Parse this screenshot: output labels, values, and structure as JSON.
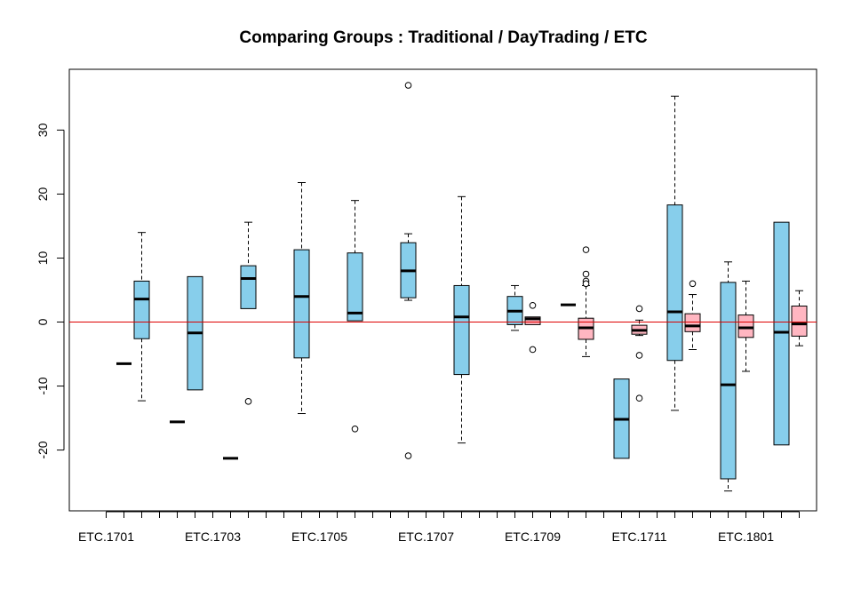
{
  "chart_data": {
    "type": "box",
    "title": "Comparing Groups : Traditional / DayTrading / ETC",
    "xlabel": "",
    "ylabel": "",
    "ylim": [
      -29.5,
      39.5
    ],
    "yticks": [
      -20,
      -10,
      0,
      10,
      20,
      30
    ],
    "reference_line": {
      "y": 0,
      "color": "#dd0000"
    },
    "colors": {
      "blue": "#87ceeb",
      "pink": "#ffb6c1"
    },
    "group_count": 40,
    "x_tick_labels": [
      {
        "group": 1,
        "label": "ETC.1701"
      },
      {
        "group": 7,
        "label": "ETC.1703"
      },
      {
        "group": 13,
        "label": "ETC.1705"
      },
      {
        "group": 19,
        "label": "ETC.1707"
      },
      {
        "group": 25,
        "label": "ETC.1709"
      },
      {
        "group": 31,
        "label": "ETC.1711"
      },
      {
        "group": 37,
        "label": "ETC.1801"
      }
    ],
    "boxes": [
      {
        "group": 2,
        "color": "blue",
        "single": -6.5
      },
      {
        "group": 3,
        "color": "blue",
        "whisker_low": -12.3,
        "q1": -2.6,
        "median": 3.6,
        "q3": 6.4,
        "whisker_high": 14.0,
        "outliers": []
      },
      {
        "group": 5,
        "color": "blue",
        "single": -15.6
      },
      {
        "group": 6,
        "color": "blue",
        "whisker_low": -10.6,
        "q1": -10.6,
        "median": -1.7,
        "q3": 7.1,
        "whisker_high": 7.1,
        "outliers": []
      },
      {
        "group": 8,
        "color": "blue",
        "single": -21.3
      },
      {
        "group": 9,
        "color": "blue",
        "whisker_low": 2.1,
        "q1": 2.1,
        "median": 6.8,
        "q3": 8.8,
        "whisker_high": 15.6,
        "outliers": [
          -12.4
        ]
      },
      {
        "group": 12,
        "color": "blue",
        "whisker_low": -14.3,
        "q1": -5.6,
        "median": 4.0,
        "q3": 11.3,
        "whisker_high": 21.8,
        "outliers": []
      },
      {
        "group": 15,
        "color": "blue",
        "whisker_low": 0.2,
        "q1": 0.2,
        "median": 1.4,
        "q3": 10.8,
        "whisker_high": 19.0,
        "outliers": [
          -16.7
        ]
      },
      {
        "group": 18,
        "color": "blue",
        "whisker_low": 3.4,
        "q1": 3.8,
        "median": 8.0,
        "q3": 12.4,
        "whisker_high": 13.8,
        "outliers": [
          37.0,
          -20.9
        ]
      },
      {
        "group": 21,
        "color": "blue",
        "whisker_low": -18.9,
        "q1": -8.2,
        "median": 0.8,
        "q3": 5.7,
        "whisker_high": 19.6,
        "outliers": []
      },
      {
        "group": 24,
        "color": "blue",
        "whisker_low": -1.3,
        "q1": -0.4,
        "median": 1.7,
        "q3": 4.0,
        "whisker_high": 5.7,
        "outliers": []
      },
      {
        "group": 25,
        "color": "pink",
        "whisker_low": -0.4,
        "q1": -0.4,
        "median": 0.5,
        "q3": 0.8,
        "whisker_high": 0.8,
        "outliers": [
          2.6,
          -4.3
        ]
      },
      {
        "group": 27,
        "color": "blue",
        "single": 2.7
      },
      {
        "group": 28,
        "color": "pink",
        "whisker_low": -5.4,
        "q1": -2.7,
        "median": -0.9,
        "q3": 0.6,
        "whisker_high": 5.7,
        "outliers": [
          11.3,
          7.5,
          6.4,
          6.0
        ]
      },
      {
        "group": 30,
        "color": "blue",
        "whisker_low": -21.3,
        "q1": -21.3,
        "median": -15.2,
        "q3": -8.9,
        "whisker_high": -8.9,
        "outliers": []
      },
      {
        "group": 31,
        "color": "pink",
        "whisker_low": -2.1,
        "q1": -1.9,
        "median": -1.3,
        "q3": -0.5,
        "whisker_high": 0.3,
        "outliers": [
          2.1,
          -5.2,
          -11.9
        ]
      },
      {
        "group": 33,
        "color": "blue",
        "whisker_low": -13.8,
        "q1": -6.0,
        "median": 1.6,
        "q3": 18.3,
        "whisker_high": 35.3,
        "outliers": []
      },
      {
        "group": 34,
        "color": "pink",
        "whisker_low": -4.3,
        "q1": -1.5,
        "median": -0.6,
        "q3": 1.3,
        "whisker_high": 4.3,
        "outliers": [
          6.0
        ]
      },
      {
        "group": 36,
        "color": "blue",
        "whisker_low": -26.4,
        "q1": -24.5,
        "median": -9.8,
        "q3": 6.2,
        "whisker_high": 9.4,
        "outliers": []
      },
      {
        "group": 37,
        "color": "pink",
        "whisker_low": -7.7,
        "q1": -2.4,
        "median": -0.9,
        "q3": 1.1,
        "whisker_high": 6.4,
        "outliers": []
      },
      {
        "group": 39,
        "color": "blue",
        "whisker_low": -19.2,
        "q1": -19.2,
        "median": -1.6,
        "q3": 15.6,
        "whisker_high": 15.6,
        "outliers": []
      },
      {
        "group": 40,
        "color": "pink",
        "whisker_low": -3.7,
        "q1": -2.2,
        "median": -0.3,
        "q3": 2.5,
        "whisker_high": 4.9,
        "outliers": []
      }
    ]
  }
}
